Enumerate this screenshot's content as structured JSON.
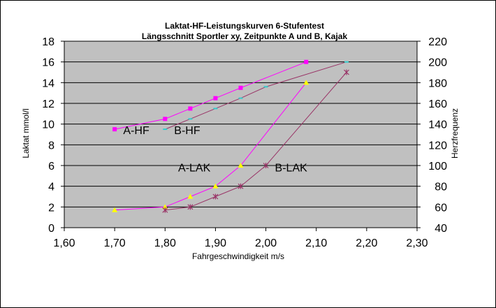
{
  "chart_data": {
    "type": "line",
    "title": "Laktat-HF-Leistungskurven 6-Stufentest",
    "subtitle": "Längsschnitt Sportler xy,  Zeitpunkte A und B, Kajak",
    "xlabel": "Fahrgeschwindigkeit m/s",
    "ylabel": "Laktat mmol/l",
    "y2label": "Herzfrequenz",
    "xlim": [
      1.6,
      2.3
    ],
    "ylim": [
      0,
      18
    ],
    "y2lim": [
      40,
      220
    ],
    "x_ticks": [
      "1,60",
      "1,70",
      "1,80",
      "1,90",
      "2,00",
      "2,10",
      "2,20",
      "2,30"
    ],
    "x_tick_values": [
      1.6,
      1.7,
      1.8,
      1.9,
      2.0,
      2.1,
      2.2,
      2.3
    ],
    "y_ticks": [
      "0",
      "2",
      "4",
      "6",
      "8",
      "10",
      "12",
      "14",
      "16",
      "18"
    ],
    "y_tick_values": [
      0,
      2,
      4,
      6,
      8,
      10,
      12,
      14,
      16,
      18
    ],
    "y2_ticks": [
      "40",
      "60",
      "80",
      "100",
      "120",
      "140",
      "160",
      "180",
      "200",
      "220"
    ],
    "y2_tick_values": [
      40,
      60,
      80,
      100,
      120,
      140,
      160,
      180,
      200,
      220
    ],
    "grid": true,
    "plot_background": "#c0c0c0",
    "series": [
      {
        "name": "A-HF",
        "axis": "right",
        "color": "#ff00ff",
        "marker": "square",
        "x": [
          1.7,
          1.8,
          1.85,
          1.9,
          1.95,
          2.08
        ],
        "y": [
          135,
          145,
          155,
          165,
          175,
          200
        ]
      },
      {
        "name": "B-HF",
        "axis": "right",
        "color": "#993366",
        "marker": "dash",
        "marker_color": "#33cccc",
        "x": [
          1.8,
          1.85,
          1.9,
          1.95,
          2.0,
          2.16
        ],
        "y": [
          135,
          145,
          155,
          165,
          176,
          200
        ]
      },
      {
        "name": "A-LAK",
        "axis": "left",
        "color": "#ff00ff",
        "marker": "triangle",
        "marker_color": "#ffff00",
        "x": [
          1.7,
          1.8,
          1.85,
          1.9,
          1.95,
          2.08
        ],
        "y": [
          1.7,
          2.0,
          3.0,
          4.0,
          6.0,
          14.0
        ]
      },
      {
        "name": "B-LAK",
        "axis": "left",
        "color": "#993366",
        "marker": "star",
        "x": [
          1.8,
          1.85,
          1.9,
          1.95,
          2.0,
          2.16
        ],
        "y": [
          1.7,
          2.0,
          3.0,
          4.0,
          6.0,
          15.0
        ]
      }
    ],
    "annotations": [
      {
        "text": "A-HF",
        "x": 1.717,
        "y": 9.5
      },
      {
        "text": "B-HF",
        "x": 1.818,
        "y": 9.5
      },
      {
        "text": "A-LAK",
        "x": 1.826,
        "y": 5.9
      },
      {
        "text": "B-LAK",
        "x": 2.018,
        "y": 5.9
      }
    ]
  }
}
